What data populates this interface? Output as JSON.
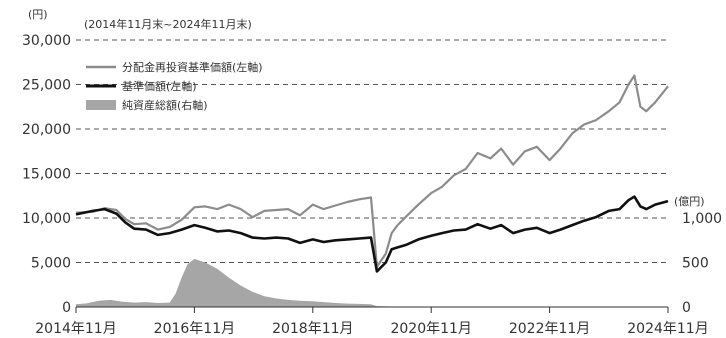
{
  "chart_data": {
    "type": "line",
    "period": "(2014年11月末~2024年11月末)",
    "left_axis": {
      "unit": "(円)",
      "range": [
        0,
        30000
      ],
      "ticks": [
        "0",
        "5,000",
        "10,000",
        "15,000",
        "20,000",
        "25,000",
        "30,000"
      ],
      "tick_values": [
        0,
        5000,
        10000,
        15000,
        20000,
        25000,
        30000
      ]
    },
    "right_axis": {
      "unit": "(億円)",
      "range": [
        0,
        1000
      ],
      "ticks": [
        "0",
        "500",
        "1,000"
      ],
      "tick_values": [
        0,
        500,
        1000
      ]
    },
    "x_range": [
      2014.917,
      2024.917
    ],
    "x_ticks": [
      "2014年11月",
      "2016年11月",
      "2018年11月",
      "2020年11月",
      "2022年11月",
      "2024年11月"
    ],
    "x_tick_values": [
      2014.917,
      2016.917,
      2018.917,
      2020.917,
      2022.917,
      2024.917
    ],
    "gridlines": "dashed, horizontal",
    "legend_position": "top-left",
    "series": [
      {
        "name": "分配金再投資基準価額(左軸)",
        "axis": "left",
        "style": "line",
        "color": "#8c8c8c",
        "x": [
          2014.917,
          2015.2,
          2015.4,
          2015.6,
          2015.75,
          2015.9,
          2016.1,
          2016.3,
          2016.5,
          2016.7,
          2016.917,
          2017.1,
          2017.3,
          2017.5,
          2017.7,
          2017.9,
          2018.1,
          2018.3,
          2018.5,
          2018.7,
          2018.917,
          2019.1,
          2019.3,
          2019.5,
          2019.7,
          2019.9,
          2020.0,
          2020.15,
          2020.25,
          2020.35,
          2020.5,
          2020.7,
          2020.917,
          2021.1,
          2021.3,
          2021.5,
          2021.7,
          2021.917,
          2022.1,
          2022.3,
          2022.5,
          2022.7,
          2022.917,
          2023.1,
          2023.3,
          2023.5,
          2023.7,
          2023.917,
          2024.1,
          2024.25,
          2024.35,
          2024.45,
          2024.55,
          2024.7,
          2024.917
        ],
        "y": [
          10600,
          10700,
          11100,
          10900,
          9900,
          9300,
          9400,
          8700,
          9000,
          9800,
          11200,
          11300,
          11000,
          11500,
          11000,
          10100,
          10800,
          10900,
          11000,
          10300,
          11500,
          11000,
          11400,
          11800,
          12100,
          12300,
          4500,
          6000,
          8300,
          9200,
          10200,
          11500,
          12800,
          13500,
          14800,
          15500,
          17300,
          16700,
          17800,
          16000,
          17500,
          18000,
          16500,
          17800,
          19500,
          20500,
          21000,
          22000,
          23000,
          25000,
          26000,
          22500,
          22000,
          23000,
          24800
        ]
      },
      {
        "name": "基準価額(左軸)",
        "axis": "left",
        "style": "line",
        "color": "#111111",
        "x": [
          2014.917,
          2015.2,
          2015.4,
          2015.6,
          2015.75,
          2015.9,
          2016.1,
          2016.3,
          2016.5,
          2016.7,
          2016.917,
          2017.1,
          2017.3,
          2017.5,
          2017.7,
          2017.9,
          2018.1,
          2018.3,
          2018.5,
          2018.7,
          2018.917,
          2019.1,
          2019.3,
          2019.5,
          2019.7,
          2019.9,
          2020.0,
          2020.15,
          2020.25,
          2020.35,
          2020.5,
          2020.7,
          2020.917,
          2021.1,
          2021.3,
          2021.5,
          2021.7,
          2021.917,
          2022.1,
          2022.3,
          2022.5,
          2022.7,
          2022.917,
          2023.1,
          2023.3,
          2023.5,
          2023.7,
          2023.917,
          2024.1,
          2024.25,
          2024.35,
          2024.45,
          2024.55,
          2024.7,
          2024.917
        ],
        "y": [
          10400,
          10800,
          11000,
          10500,
          9500,
          8800,
          8700,
          8100,
          8300,
          8700,
          9200,
          8900,
          8500,
          8600,
          8300,
          7800,
          7700,
          7800,
          7700,
          7200,
          7600,
          7300,
          7500,
          7600,
          7700,
          7800,
          4000,
          5000,
          6500,
          6700,
          7000,
          7600,
          8000,
          8300,
          8600,
          8700,
          9300,
          8800,
          9200,
          8300,
          8700,
          8900,
          8300,
          8700,
          9200,
          9700,
          10100,
          10800,
          11000,
          12000,
          12400,
          11300,
          11000,
          11500,
          11900
        ]
      },
      {
        "name": "純資産総額(右軸)",
        "axis": "right",
        "style": "area",
        "color": "#a6a6a6",
        "x": [
          2014.917,
          2015.1,
          2015.3,
          2015.5,
          2015.7,
          2015.9,
          2016.1,
          2016.3,
          2016.5,
          2016.6,
          2016.7,
          2016.8,
          2016.917,
          2017.1,
          2017.3,
          2017.5,
          2017.7,
          2017.9,
          2018.1,
          2018.3,
          2018.5,
          2018.7,
          2018.917,
          2019.1,
          2019.3,
          2019.5,
          2019.7,
          2019.9,
          2020.0,
          2020.3,
          2020.917,
          2021.917,
          2022.917,
          2023.917,
          2024.917
        ],
        "y": [
          30,
          40,
          70,
          80,
          60,
          50,
          55,
          45,
          50,
          150,
          330,
          480,
          540,
          500,
          430,
          330,
          240,
          170,
          120,
          95,
          80,
          70,
          65,
          55,
          45,
          38,
          35,
          30,
          10,
          6,
          5,
          5,
          5,
          5,
          5
        ]
      }
    ]
  }
}
